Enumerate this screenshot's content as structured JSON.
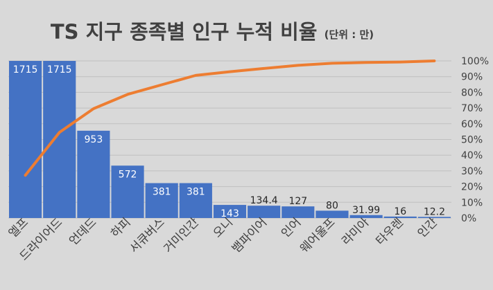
{
  "chart_data": {
    "type": "bar",
    "title": "TS 지구 종족별 인구 누적 비율",
    "title_unit": "(단위 : 만)",
    "categories": [
      "엘프",
      "드라이어드",
      "언데드",
      "하피",
      "서큐버스",
      "거미인간",
      "오니",
      "뱀파이어",
      "인어",
      "웨어울프",
      "라미아",
      "타우렌",
      "인간"
    ],
    "series": [
      {
        "type": "bar",
        "values": [
          1715,
          1715,
          953,
          572,
          381,
          381,
          143,
          134.4,
          127,
          80,
          31.99,
          16,
          12.2
        ],
        "data_labels": [
          "1715",
          "1715",
          "953",
          "572",
          "381",
          "381",
          "143",
          "134.4",
          "127",
          "80",
          "31.99",
          "16",
          "12.2"
        ],
        "color": "#4472c4"
      },
      {
        "type": "line",
        "axis": "right",
        "values": [
          27.2,
          54.5,
          69.6,
          78.7,
          84.8,
          90.8,
          93.1,
          95.2,
          97.2,
          98.5,
          99.0,
          99.3,
          100.0
        ],
        "color": "#ed7d31"
      }
    ],
    "ylim": [
      0,
      1715
    ],
    "y2lim": [
      0,
      100
    ],
    "y2ticks": [
      "0%",
      "10%",
      "20%",
      "30%",
      "40%",
      "50%",
      "60%",
      "70%",
      "80%",
      "90%",
      "100%"
    ],
    "grid": true,
    "legend": "none"
  },
  "colors": {
    "background": "#d9d9d9",
    "bar": "#4472c4",
    "line": "#ed7d31",
    "grid": "#bfbfbf"
  }
}
